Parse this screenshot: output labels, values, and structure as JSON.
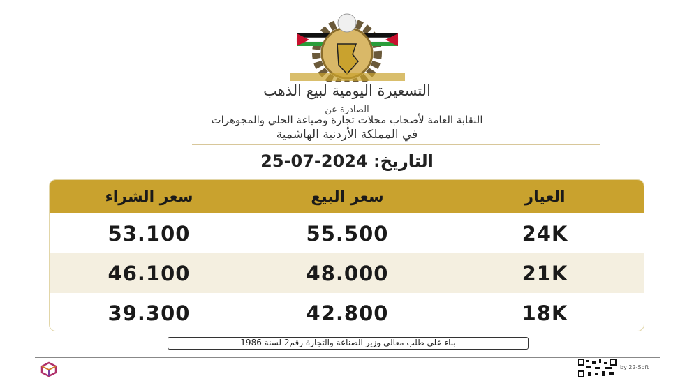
{
  "header": {
    "title": "التسعيرة اليومية لبيع الذهب",
    "issued_by": "الصادرة عن",
    "syndicate": "النقابة العامة لأصحاب محلات تجارة وصياغة الحلي والمجوهرات",
    "kingdom": "في المملكة الأردنية الهاشمية",
    "date_label": "التاريخ:",
    "date_value": "25-07-2024"
  },
  "table": {
    "columns": [
      "العيار",
      "سعر البيع",
      "سعر الشراء"
    ],
    "rows": [
      {
        "purity": "24K",
        "sell": "55.500",
        "buy": "53.100"
      },
      {
        "purity": "21K",
        "sell": "48.000",
        "buy": "46.100"
      },
      {
        "purity": "18K",
        "sell": "42.800",
        "buy": "39.300"
      }
    ]
  },
  "footer": {
    "note": "بناء على طلب معالي وزير الصناعة والتجارة رقم2 لسنة 1986",
    "credit": "by 22-Soft"
  },
  "colors": {
    "gold": "#c9a22e",
    "alt_row": "#f4efe0"
  },
  "icons": {
    "logo": "syndicate-emblem-icon",
    "brand": "cube-logo-icon",
    "qr": "qr-code-icon"
  }
}
